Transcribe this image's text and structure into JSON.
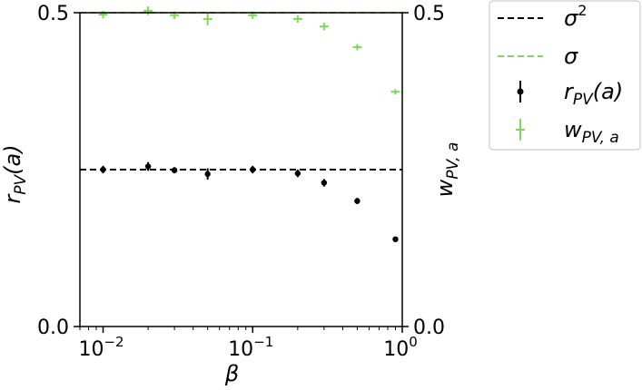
{
  "chart_data": {
    "type": "scatter",
    "x_scale": "log",
    "xlim": [
      0.007,
      1.0
    ],
    "ylim_left": [
      0.0,
      0.5
    ],
    "ylim_right": [
      0.0,
      0.5
    ],
    "xlabel": "β",
    "ylabel_left": "r_PV(a)",
    "ylabel_right": "w_PV,a",
    "x_ticks": [
      {
        "value": 0.01,
        "base": "10",
        "exp": "−2"
      },
      {
        "value": 0.1,
        "base": "10",
        "exp": "−1"
      },
      {
        "value": 1.0,
        "base": "10",
        "exp": "0"
      }
    ],
    "y_ticks_left": [
      {
        "value": 0.0,
        "label": "0.0"
      },
      {
        "value": 0.5,
        "label": "0.5"
      }
    ],
    "y_ticks_right": [
      {
        "value": 0.0,
        "label": "0.0"
      },
      {
        "value": 0.5,
        "label": "0.5"
      }
    ],
    "hlines": [
      {
        "name": "σ²",
        "y": 0.25,
        "color": "#000000",
        "dash": true
      },
      {
        "name": "σ",
        "y": 0.5,
        "color": "#7ed957",
        "dash": true
      }
    ],
    "series": [
      {
        "name": "r_PV(a)",
        "color": "#000000",
        "marker": "point",
        "axis": "left",
        "x": [
          0.01,
          0.02,
          0.03,
          0.05,
          0.1,
          0.2,
          0.3,
          0.5,
          0.9
        ],
        "y": [
          0.25,
          0.255,
          0.249,
          0.243,
          0.25,
          0.244,
          0.229,
          0.2,
          0.139
        ],
        "err": [
          0.006,
          0.007,
          0.005,
          0.009,
          0.006,
          0.006,
          0.006,
          0.005,
          0.003
        ]
      },
      {
        "name": "w_PV,a",
        "color": "#7ed957",
        "marker": "plus",
        "axis": "right",
        "x": [
          0.01,
          0.02,
          0.03,
          0.05,
          0.1,
          0.2,
          0.3,
          0.5,
          0.9
        ],
        "y": [
          0.497,
          0.503,
          0.496,
          0.49,
          0.496,
          0.49,
          0.478,
          0.445,
          0.374
        ],
        "err": [
          0.006,
          0.007,
          0.006,
          0.01,
          0.006,
          0.006,
          0.006,
          0.005,
          0.004
        ]
      }
    ],
    "legend": {
      "placement": "outside-top-right",
      "entries": [
        {
          "kind": "line",
          "color": "#000000",
          "base": "σ",
          "sup": "2",
          "sub": ""
        },
        {
          "kind": "line",
          "color": "#7ed957",
          "base": "σ",
          "sup": "",
          "sub": ""
        },
        {
          "kind": "errpoint",
          "color": "#000000",
          "base": "r",
          "sub": "PV",
          "suffix": "(a)"
        },
        {
          "kind": "errplus",
          "color": "#7ed957",
          "base": "w",
          "sub": "PV, a",
          "suffix": ""
        }
      ]
    }
  }
}
